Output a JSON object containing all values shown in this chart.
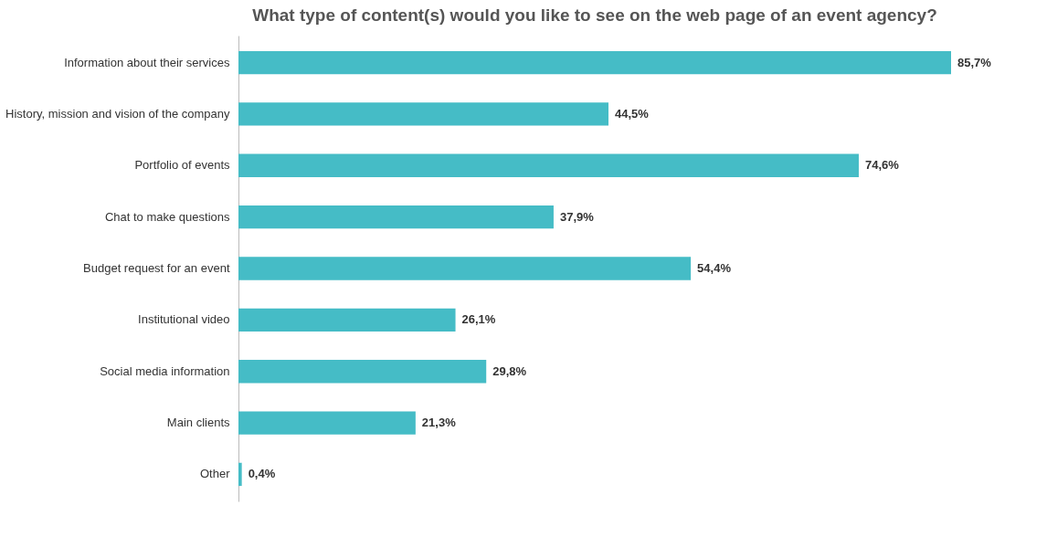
{
  "chart_data": {
    "type": "bar",
    "orientation": "horizontal",
    "title": "What type of content(s) would you like to see on the web page of an event agency?",
    "categories": [
      "Information about their services",
      "History, mission and vision of the company",
      "Portfolio of events",
      "Chat to make questions",
      "Budget request for an event",
      "Institutional video",
      "Social media information",
      "Main clients",
      "Other"
    ],
    "values": [
      85.7,
      44.5,
      74.6,
      37.9,
      54.4,
      26.1,
      29.8,
      21.3,
      0.4
    ],
    "value_labels": [
      "85,7%",
      "44,5%",
      "74,6%",
      "37,9%",
      "54,4%",
      "26,1%",
      "29,8%",
      "21,3%",
      "0,4%"
    ],
    "color": "#45bcc6",
    "grid": false
  }
}
